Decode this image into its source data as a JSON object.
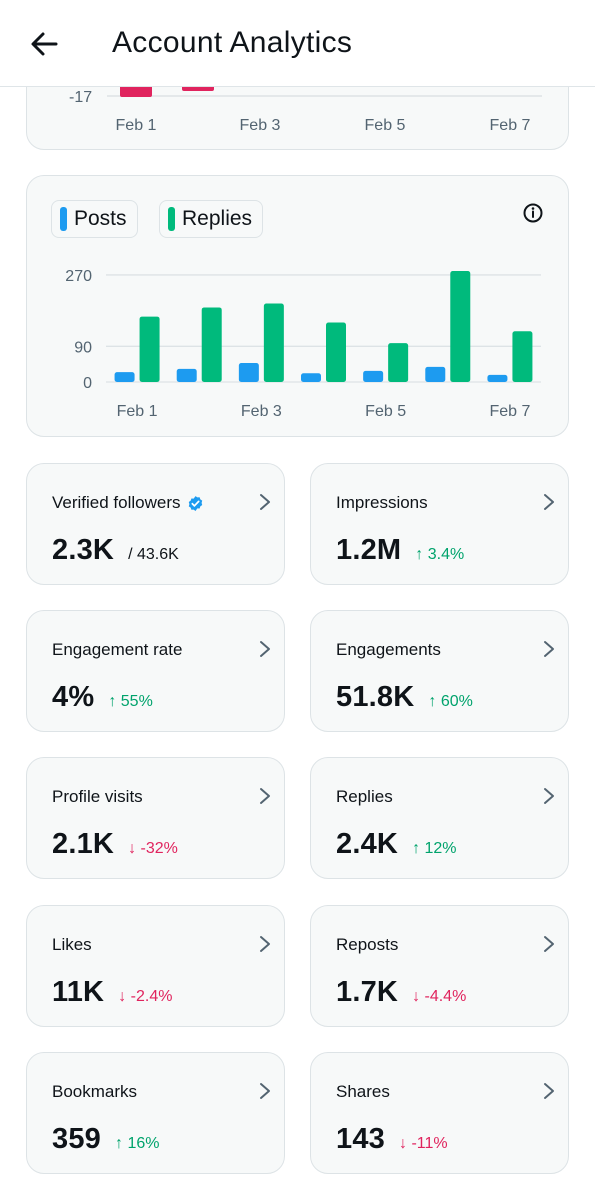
{
  "header": {
    "title": "Account Analytics"
  },
  "colors": {
    "posts": "#1d9bf0",
    "replies": "#00ba7c",
    "up": "#00a36c",
    "down": "#e0245e",
    "bad_bar": "#e0245e"
  },
  "top_chart": {
    "ytick": "-17",
    "xticks": [
      "Feb 1",
      "Feb 3",
      "Feb 5",
      "Feb 7"
    ]
  },
  "legend": {
    "posts": "Posts",
    "replies": "Replies"
  },
  "chart_data": {
    "type": "bar",
    "categories": [
      "Feb 1",
      "Feb 2",
      "Feb 3",
      "Feb 4",
      "Feb 5",
      "Feb 6",
      "Feb 7"
    ],
    "xticks": [
      "Feb 1",
      "Feb 3",
      "Feb 5",
      "Feb 7"
    ],
    "yticks": [
      0,
      90,
      270
    ],
    "ylim": [
      0,
      290
    ],
    "series": [
      {
        "name": "Posts",
        "values": [
          25,
          33,
          48,
          22,
          28,
          38,
          18
        ]
      },
      {
        "name": "Replies",
        "values": [
          165,
          188,
          198,
          150,
          98,
          280,
          128
        ]
      }
    ],
    "legend": "top-left",
    "grid": true
  },
  "stats": [
    {
      "label": "Verified followers",
      "value": "2.3K",
      "sub": "/ 43.6K",
      "delta": "",
      "dir": "",
      "verified": true
    },
    {
      "label": "Impressions",
      "value": "1.2M",
      "sub": "",
      "delta": "↑ 3.4%",
      "dir": "up"
    },
    {
      "label": "Engagement rate",
      "value": "4%",
      "sub": "",
      "delta": "↑ 55%",
      "dir": "up"
    },
    {
      "label": "Engagements",
      "value": "51.8K",
      "sub": "",
      "delta": "↑ 60%",
      "dir": "up"
    },
    {
      "label": "Profile visits",
      "value": "2.1K",
      "sub": "",
      "delta": "↓ -32%",
      "dir": "down"
    },
    {
      "label": "Replies",
      "value": "2.4K",
      "sub": "",
      "delta": "↑ 12%",
      "dir": "up"
    },
    {
      "label": "Likes",
      "value": "11K",
      "sub": "",
      "delta": "↓ -2.4%",
      "dir": "down"
    },
    {
      "label": "Reposts",
      "value": "1.7K",
      "sub": "",
      "delta": "↓ -4.4%",
      "dir": "down"
    },
    {
      "label": "Bookmarks",
      "value": "359",
      "sub": "",
      "delta": "↑ 16%",
      "dir": "up"
    },
    {
      "label": "Shares",
      "value": "143",
      "sub": "",
      "delta": "↓ -11%",
      "dir": "down"
    }
  ]
}
